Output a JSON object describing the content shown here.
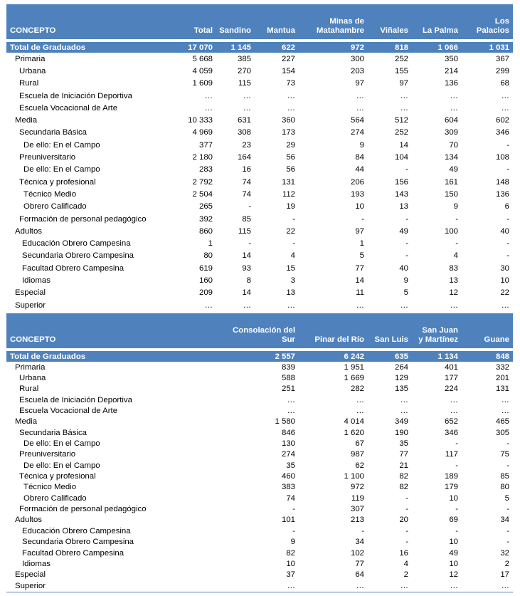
{
  "table1": {
    "headers": [
      "CONCEPTO",
      "Total",
      "Sandino",
      "Mantua",
      "Minas de\nMatahambre",
      "Viñales",
      "La Palma",
      "Los\nPalacios"
    ],
    "rows": [
      {
        "label": "Total de Graduados",
        "level": "total",
        "values": [
          "17 070",
          "1 145",
          "622",
          "972",
          "818",
          "1 066",
          "1 031"
        ]
      },
      {
        "label": "Primaria",
        "level": "l0",
        "values": [
          "5 668",
          "385",
          "227",
          "300",
          "252",
          "350",
          "367"
        ]
      },
      {
        "label": "Urbana",
        "level": "l1",
        "values": [
          "4 059",
          "270",
          "154",
          "203",
          "155",
          "214",
          "299"
        ]
      },
      {
        "label": "Rural",
        "level": "l1",
        "values": [
          "1 609",
          "115",
          "73",
          "97",
          "97",
          "136",
          "68"
        ]
      },
      {
        "label": "Escuela de Iniciación Deportiva",
        "level": "l1",
        "values": [
          "…",
          "…",
          "…",
          "…",
          "…",
          "…",
          "…"
        ]
      },
      {
        "label": "Escuela Vocacional de Arte",
        "level": "l1",
        "values": [
          "…",
          "…",
          "…",
          "…",
          "…",
          "…",
          "…"
        ]
      },
      {
        "label": "Media",
        "level": "l0",
        "values": [
          "10 333",
          "631",
          "360",
          "564",
          "512",
          "604",
          "602"
        ]
      },
      {
        "label": "Secundaria Básica",
        "level": "l1",
        "values": [
          "4 969",
          "308",
          "173",
          "274",
          "252",
          "309",
          "346"
        ]
      },
      {
        "label": "De ello: En el Campo",
        "level": "l2",
        "values": [
          "377",
          "23",
          "29",
          "9",
          "14",
          "70",
          "-"
        ]
      },
      {
        "label": "Preuniversitario",
        "level": "l1",
        "values": [
          "2 180",
          "164",
          "56",
          "84",
          "104",
          "134",
          "108"
        ]
      },
      {
        "label": "De ello: En el Campo",
        "level": "l2",
        "values": [
          "283",
          "16",
          "56",
          "44",
          "-",
          "49",
          "-"
        ]
      },
      {
        "label": "Técnica y profesional",
        "level": "l1",
        "values": [
          "2 792",
          "74",
          "131",
          "206",
          "156",
          "161",
          "148"
        ]
      },
      {
        "label": "Técnico Medio",
        "level": "l2",
        "values": [
          "2 504",
          "74",
          "112",
          "193",
          "143",
          "150",
          "136"
        ]
      },
      {
        "label": "Obrero Calificado",
        "level": "l2",
        "values": [
          "265",
          "-",
          "19",
          "10",
          "13",
          "9",
          "6"
        ]
      },
      {
        "label": "Formación de personal pedagógico",
        "level": "l1",
        "values": [
          "392",
          "85",
          "-",
          "-",
          "-",
          "-",
          "-"
        ]
      },
      {
        "label": "Adultos",
        "level": "l0",
        "values": [
          "860",
          "115",
          "22",
          "97",
          "49",
          "100",
          "40"
        ]
      },
      {
        "label": "Educación Obrero Campesina",
        "level": "l3",
        "values": [
          "1",
          "-",
          "-",
          "1",
          "-",
          "-",
          "-"
        ]
      },
      {
        "label": "Secundaria Obrero Campesina",
        "level": "l3",
        "values": [
          "80",
          "14",
          "4",
          "5",
          "-",
          "4",
          "-"
        ]
      },
      {
        "label": "Facultad Obrero Campesina",
        "level": "l3",
        "values": [
          "619",
          "93",
          "15",
          "77",
          "40",
          "83",
          "30"
        ]
      },
      {
        "label": "Idiomas",
        "level": "l3",
        "values": [
          "160",
          "8",
          "3",
          "14",
          "9",
          "13",
          "10"
        ]
      },
      {
        "label": "Especial",
        "level": "l0",
        "values": [
          "209",
          "14",
          "13",
          "11",
          "5",
          "12",
          "22"
        ]
      },
      {
        "label": "Superior",
        "level": "l0",
        "values": [
          "…",
          "…",
          "…",
          "…",
          "…",
          "…",
          "…"
        ]
      }
    ]
  },
  "table2": {
    "headers": [
      "CONCEPTO",
      "Consolación del\nSur",
      "Pinar del Río",
      "San Luis",
      "San Juan\ny Martínez",
      "Guane"
    ],
    "rows": [
      {
        "label": "Total de Graduados",
        "level": "total",
        "values": [
          "2 557",
          "6 242",
          "635",
          "1 134",
          "848"
        ]
      },
      {
        "label": "Primaria",
        "level": "l0",
        "values": [
          "839",
          "1 951",
          "264",
          "401",
          "332"
        ]
      },
      {
        "label": "Urbana",
        "level": "l1",
        "values": [
          "588",
          "1 669",
          "129",
          "177",
          "201"
        ]
      },
      {
        "label": "Rural",
        "level": "l1",
        "values": [
          "251",
          "282",
          "135",
          "224",
          "131"
        ]
      },
      {
        "label": "Escuela de Iniciación Deportiva",
        "level": "l1",
        "values": [
          "…",
          "…",
          "…",
          "…",
          "…"
        ]
      },
      {
        "label": "Escuela Vocacional de Arte",
        "level": "l1",
        "values": [
          "…",
          "…",
          "…",
          "…",
          "…"
        ]
      },
      {
        "label": "Media",
        "level": "l0",
        "values": [
          "1 580",
          "4 014",
          "349",
          "652",
          "465"
        ]
      },
      {
        "label": "Secundaria Básica",
        "level": "l1",
        "values": [
          "846",
          "1 620",
          "190",
          "346",
          "305"
        ]
      },
      {
        "label": "De ello: En el Campo",
        "level": "l2",
        "values": [
          "130",
          "67",
          "35",
          "-",
          "-"
        ]
      },
      {
        "label": "Preuniversitario",
        "level": "l1",
        "values": [
          "274",
          "987",
          "77",
          "117",
          "75"
        ]
      },
      {
        "label": "De ello: En el Campo",
        "level": "l2",
        "values": [
          "35",
          "62",
          "21",
          "-",
          "-"
        ]
      },
      {
        "label": "Técnica y profesional",
        "level": "l1",
        "values": [
          "460",
          "1 100",
          "82",
          "189",
          "85"
        ]
      },
      {
        "label": "Técnico Medio",
        "level": "l2",
        "values": [
          "383",
          "972",
          "82",
          "179",
          "80"
        ]
      },
      {
        "label": "Obrero Calificado",
        "level": "l2",
        "values": [
          "74",
          "119",
          "-",
          "10",
          "5"
        ]
      },
      {
        "label": "Formación de personal pedagógico",
        "level": "l1",
        "values": [
          "-",
          "307",
          "-",
          "-",
          "-"
        ]
      },
      {
        "label": "Adultos",
        "level": "l0",
        "values": [
          "101",
          "213",
          "20",
          "69",
          "34"
        ]
      },
      {
        "label": "Educación Obrero Campesina",
        "level": "l3",
        "values": [
          "-",
          "-",
          "-",
          "-",
          "-"
        ]
      },
      {
        "label": "Secundaria Obrero Campesina",
        "level": "l3",
        "values": [
          "9",
          "34",
          "-",
          "10",
          "-"
        ]
      },
      {
        "label": "Facultad Obrero Campesina",
        "level": "l3",
        "values": [
          "82",
          "102",
          "16",
          "49",
          "32"
        ]
      },
      {
        "label": "Idiomas",
        "level": "l3",
        "values": [
          "10",
          "77",
          "4",
          "10",
          "2"
        ]
      },
      {
        "label": "Especial",
        "level": "l0",
        "values": [
          "37",
          "64",
          "2",
          "12",
          "17"
        ]
      },
      {
        "label": "Superior",
        "level": "l0",
        "values": [
          "…",
          "…",
          "…",
          "…",
          "…"
        ]
      }
    ]
  }
}
